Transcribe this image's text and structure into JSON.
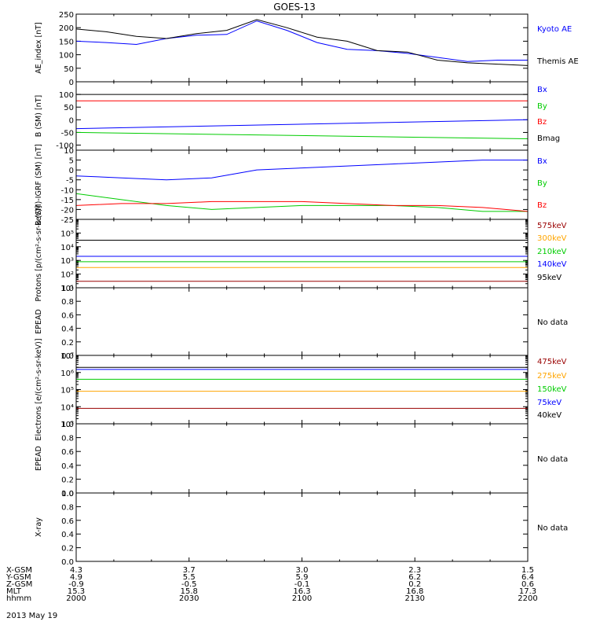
{
  "title": "GOES-13",
  "date_label": "2013 May 19",
  "nodata_label": "No data",
  "chart_data": [
    {
      "type": "line",
      "ylabel": "AE_index [nT]",
      "ylim": [
        0,
        250
      ],
      "yticks": [
        "0",
        "50",
        "100",
        "150",
        "200",
        "250"
      ],
      "x": [
        0,
        4,
        8,
        12,
        16,
        20,
        24,
        28,
        32,
        36,
        40,
        44,
        48,
        52,
        56,
        60
      ],
      "series": [
        {
          "name": "Kyoto AE",
          "color": "#0000ff",
          "values": [
            150,
            145,
            138,
            160,
            172,
            175,
            225,
            190,
            145,
            120,
            115,
            105,
            90,
            75,
            80,
            80
          ]
        },
        {
          "name": "Themis AE",
          "color": "#000000",
          "values": [
            195,
            185,
            168,
            160,
            178,
            190,
            230,
            200,
            165,
            150,
            115,
            110,
            80,
            70,
            65,
            60
          ]
        }
      ]
    },
    {
      "type": "line",
      "ylabel": "B (SM) [nT]",
      "ylim": [
        -120,
        150
      ],
      "yticks": [
        "-100",
        "-50",
        "0",
        "50",
        "100"
      ],
      "x": [
        0,
        60
      ],
      "series": [
        {
          "name": "Bx",
          "color": "#0000ff",
          "values": [
            -35,
            0
          ]
        },
        {
          "name": "By",
          "color": "#00cc00",
          "values": [
            -50,
            -75
          ]
        },
        {
          "name": "Bz",
          "color": "#ff0000",
          "values": [
            75,
            75
          ]
        },
        {
          "name": "Bmag",
          "color": "#000000",
          "values": [
            100,
            100
          ]
        }
      ]
    },
    {
      "type": "line",
      "ylabel": "B (SM)-IGRF (SM) [nT]",
      "ylim": [
        -25,
        10
      ],
      "yticks": [
        "-25",
        "-20",
        "-15",
        "-10",
        "-5",
        "0",
        "5",
        "10"
      ],
      "x": [
        0,
        6,
        12,
        18,
        24,
        30,
        36,
        42,
        48,
        54,
        60
      ],
      "series": [
        {
          "name": "Bx",
          "color": "#0000ff",
          "values": [
            -3,
            -4,
            -5,
            -4,
            0,
            1,
            2,
            3,
            4,
            5,
            5
          ]
        },
        {
          "name": "By",
          "color": "#00cc00",
          "values": [
            -12,
            -15,
            -18,
            -20,
            -19,
            -18,
            -18,
            -18,
            -19,
            -21,
            -21
          ]
        },
        {
          "name": "Bz",
          "color": "#ff0000",
          "values": [
            -18,
            -17,
            -17,
            -16,
            -16,
            -16,
            -17,
            -18,
            -18,
            -19,
            -21
          ]
        }
      ]
    },
    {
      "type": "line",
      "ylabel": "Protons [p/(cm²-s-sr-keV)]",
      "yscale": "log",
      "ylim": [
        10,
        1000000
      ],
      "yticks": [
        "10¹",
        "10²",
        "10³",
        "10⁴",
        "10⁵"
      ],
      "x": [
        0,
        60
      ],
      "series": [
        {
          "name": "575keV",
          "color": "#990000",
          "values": [
            30,
            30
          ]
        },
        {
          "name": "300keV",
          "color": "#ffa500",
          "values": [
            300,
            300
          ]
        },
        {
          "name": "210keV",
          "color": "#00cc00",
          "values": [
            800,
            800
          ]
        },
        {
          "name": "140keV",
          "color": "#0000ff",
          "values": [
            2000,
            2000
          ]
        },
        {
          "name": "95keV",
          "color": "#000000",
          "values": [
            30000,
            30000
          ]
        }
      ]
    },
    {
      "type": "line",
      "ylabel": "EPEAD",
      "ylim": [
        0,
        1
      ],
      "yticks": [
        "0.0",
        "0.2",
        "0.4",
        "0.6",
        "0.8",
        "1.0"
      ],
      "series": []
    },
    {
      "type": "line",
      "ylabel": "Electrons [e/(cm²-s-sr-keV)]",
      "yscale": "log",
      "ylim": [
        1000,
        10000000
      ],
      "yticks": [
        "10³",
        "10⁴",
        "10⁵",
        "10⁶",
        "10⁷"
      ],
      "x": [
        0,
        60
      ],
      "series": [
        {
          "name": "475keV",
          "color": "#990000",
          "values": [
            8000,
            8000
          ]
        },
        {
          "name": "275keV",
          "color": "#ffa500",
          "values": [
            80000,
            80000
          ]
        },
        {
          "name": "150keV",
          "color": "#00cc00",
          "values": [
            400000,
            400000
          ]
        },
        {
          "name": "75keV",
          "color": "#0000ff",
          "values": [
            1500000,
            1500000
          ]
        },
        {
          "name": "40keV",
          "color": "#000000",
          "values": [
            2000000,
            2000000
          ]
        }
      ]
    },
    {
      "type": "line",
      "ylabel": "EPEAD",
      "ylim": [
        0,
        1
      ],
      "yticks": [
        "0.0",
        "0.2",
        "0.4",
        "0.6",
        "0.8",
        "1.0"
      ],
      "series": []
    },
    {
      "type": "line",
      "ylabel": "X-ray",
      "ylim": [
        0,
        1
      ],
      "yticks": [
        "0.0",
        "0.2",
        "0.4",
        "0.6",
        "0.8",
        "1.0"
      ],
      "series": []
    }
  ],
  "ephemeris": [
    {
      "label": "X-GSM",
      "values": [
        "4.3",
        "3.7",
        "3.0",
        "2.3",
        "1.5"
      ]
    },
    {
      "label": "Y-GSM",
      "values": [
        "4.9",
        "5.5",
        "5.9",
        "6.2",
        "6.4"
      ]
    },
    {
      "label": "Z-GSM",
      "values": [
        "-0.9",
        "-0.5",
        "-0.1",
        "0.2",
        "0.6"
      ]
    },
    {
      "label": "MLT",
      "values": [
        "15.3",
        "15.8",
        "16.3",
        "16.8",
        "17.3"
      ]
    },
    {
      "label": "hhmm",
      "values": [
        "2000",
        "2030",
        "2100",
        "2130",
        "2200"
      ]
    }
  ]
}
